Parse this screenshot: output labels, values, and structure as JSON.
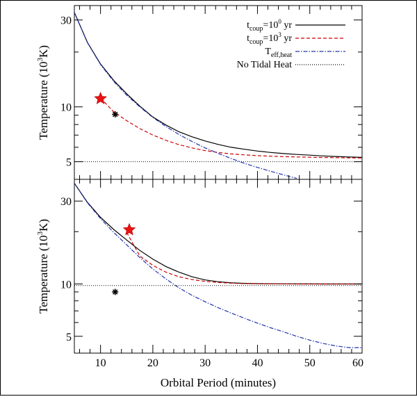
{
  "chart_data": [
    {
      "type": "line",
      "panel": "top",
      "ylabel": "Temperature (10³K)",
      "xlim": [
        5,
        60
      ],
      "ylim": [
        4.0,
        36
      ],
      "yscale": "log",
      "grid": false,
      "legend_placement": "top-right",
      "yticks": [
        5,
        10,
        30
      ],
      "x": [
        5,
        7.5,
        10,
        12.5,
        15,
        17.5,
        20,
        22.5,
        25,
        27.5,
        30,
        32.5,
        35,
        37.5,
        40,
        42.5,
        45,
        47.5,
        50,
        52.5,
        55,
        57.5,
        60
      ],
      "series": [
        {
          "name": "t_coup=10^0 yr",
          "color": "#000000",
          "style": "solid",
          "values": [
            33,
            22.6,
            17.2,
            14.0,
            11.8,
            10.1,
            8.8,
            7.95,
            7.3,
            6.85,
            6.5,
            6.22,
            6.0,
            5.85,
            5.72,
            5.62,
            5.54,
            5.48,
            5.43,
            5.38,
            5.34,
            5.31,
            5.28
          ]
        },
        {
          "name": "t_coup=10^3 yr",
          "color": "#cc0000",
          "style": "dashed",
          "values": [
            null,
            null,
            11.2,
            9.4,
            8.4,
            7.6,
            7.0,
            6.55,
            6.2,
            5.95,
            5.75,
            5.62,
            5.52,
            5.45,
            5.4,
            5.36,
            5.33,
            5.31,
            5.29,
            5.27,
            5.26,
            5.25,
            5.24
          ]
        },
        {
          "name": "T_eff,heat",
          "color": "#2233aa",
          "style": "dashdot",
          "values": [
            33,
            22.5,
            17.1,
            13.8,
            11.6,
            10.0,
            8.75,
            7.8,
            7.05,
            6.45,
            5.95,
            5.55,
            5.2,
            4.9,
            4.65,
            4.43,
            4.23,
            4.05,
            null,
            null,
            null,
            null,
            null
          ]
        },
        {
          "name": "No Tidal Heat",
          "color": "#000000",
          "style": "dotted",
          "values": [
            5.0,
            5.0,
            5.0,
            5.0,
            5.0,
            5.0,
            5.0,
            5.0,
            5.0,
            5.0,
            5.0,
            5.0,
            5.0,
            5.0,
            5.0,
            5.0,
            5.0,
            5.0,
            5.0,
            5.0,
            5.0,
            5.0,
            5.0
          ]
        }
      ],
      "markers": [
        {
          "shape": "star",
          "color": "#ee1111",
          "x": 10.0,
          "y": 11.1
        },
        {
          "shape": "asterisk",
          "color": "#000000",
          "x": 12.8,
          "y": 9.1
        }
      ]
    },
    {
      "type": "line",
      "panel": "bottom",
      "xlabel": "Orbital Period (minutes)",
      "ylabel": "Temperature (10³K)",
      "xlim": [
        5,
        60
      ],
      "ylim": [
        4.0,
        40
      ],
      "yscale": "log",
      "grid": false,
      "yticks": [
        5,
        10,
        30
      ],
      "xticks": [
        10,
        20,
        30,
        40,
        50,
        60
      ],
      "x": [
        5,
        7.5,
        10,
        12.5,
        15,
        17.5,
        20,
        22.5,
        25,
        27.5,
        30,
        32.5,
        35,
        37.5,
        40,
        42.5,
        45,
        47.5,
        50,
        52.5,
        55,
        57.5,
        60
      ],
      "series": [
        {
          "name": "t_coup=10^0 yr",
          "color": "#000000",
          "style": "solid",
          "values": [
            38,
            29.5,
            24.2,
            20.6,
            17.9,
            15.6,
            13.9,
            12.6,
            11.7,
            11.0,
            10.55,
            10.3,
            10.15,
            10.08,
            10.05,
            10.03,
            10.02,
            10.01,
            10.01,
            10.0,
            10.0,
            10.0,
            10.0
          ]
        },
        {
          "name": "t_coup=10^3 yr",
          "color": "#cc0000",
          "style": "dashed",
          "values": [
            null,
            null,
            null,
            null,
            19.8,
            14.5,
            12.8,
            11.7,
            11.0,
            10.6,
            10.35,
            10.2,
            10.1,
            10.05,
            10.03,
            10.02,
            10.01,
            10.0,
            10.0,
            10.0,
            10.0,
            10.0,
            10.0
          ]
        },
        {
          "name": "T_eff,heat",
          "color": "#2233aa",
          "style": "dashdot",
          "values": [
            38,
            29.3,
            23.8,
            19.8,
            16.8,
            14.2,
            12.2,
            10.7,
            9.5,
            8.6,
            7.9,
            7.3,
            6.8,
            6.35,
            5.95,
            5.6,
            5.3,
            5.0,
            4.75,
            4.55,
            4.4,
            4.3,
            4.3
          ]
        },
        {
          "name": "No Tidal Heat",
          "color": "#000000",
          "style": "dotted",
          "values": [
            9.8,
            9.8,
            9.8,
            9.8,
            9.8,
            9.8,
            9.8,
            9.8,
            9.8,
            9.8,
            9.8,
            9.8,
            9.8,
            9.8,
            9.8,
            9.8,
            9.8,
            9.8,
            9.8,
            9.8,
            9.8,
            9.8,
            9.8
          ]
        }
      ],
      "markers": [
        {
          "shape": "star",
          "color": "#ee1111",
          "x": 15.5,
          "y": 20.5
        },
        {
          "shape": "asterisk",
          "color": "#000000",
          "x": 12.8,
          "y": 9.0
        }
      ]
    }
  ],
  "labels": {
    "ylabel_top": "Temperature (10",
    "ylabel_bottom": "Temperature (10",
    "ylabel_sup": "3",
    "ylabel_tail": "K)",
    "xlabel": "Orbital Period (minutes)",
    "legend": [
      {
        "main": "t",
        "sub": "coup",
        "mid": "=10",
        "sup": "0",
        "tail": " yr",
        "color": "#000000",
        "dash": ""
      },
      {
        "main": "t",
        "sub": "coup",
        "mid": "=10",
        "sup": "3",
        "tail": " yr",
        "color": "#cc0000",
        "dash": "5,3"
      },
      {
        "main": "T",
        "sub": "eff,heat",
        "mid": "",
        "sup": "",
        "tail": "",
        "color": "#2233aa",
        "dash": "6,2,1.5,2"
      },
      {
        "main": "No Tidal Heat",
        "sub": "",
        "mid": "",
        "sup": "",
        "tail": "",
        "color": "#000000",
        "dash": "1,2"
      }
    ]
  }
}
